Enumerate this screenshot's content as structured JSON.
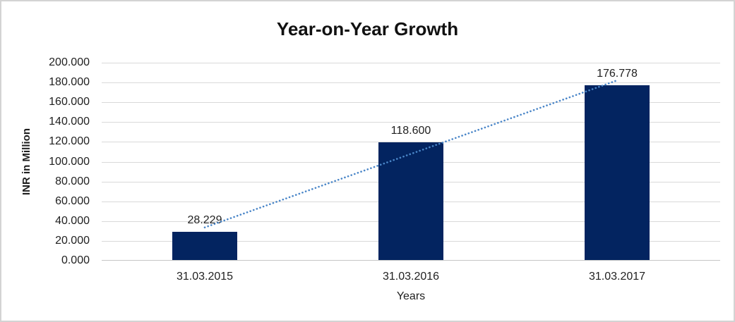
{
  "title": "Year-on-Year Growth",
  "chart_data": {
    "type": "bar",
    "title": "Year-on-Year Growth",
    "xlabel": "Years",
    "ylabel": "INR in Million",
    "categories": [
      "31.03.2015",
      "31.03.2016",
      "31.03.2017"
    ],
    "values": [
      28.229,
      118.6,
      176.778
    ],
    "value_labels": [
      "28.229",
      "118.600",
      "176.778"
    ],
    "ylim": [
      0,
      200
    ],
    "ytick_step": 20,
    "ytick_labels": [
      "0.000",
      "20.000",
      "40.000",
      "60.000",
      "80.000",
      "100.000",
      "120.000",
      "140.000",
      "160.000",
      "180.000",
      "200.000"
    ],
    "grid": true,
    "legend_position": "none",
    "trendline": {
      "type": "linear",
      "style": "dotted"
    },
    "colors": {
      "bar": "#032460",
      "trendline": "#4A86C8",
      "gridline": "#D9D9D9",
      "axis_line": "#C6C6C6",
      "text": "#1F1F1F",
      "title": "#111111",
      "border": "#D3D3D3",
      "background": "#FFFFFF"
    }
  }
}
